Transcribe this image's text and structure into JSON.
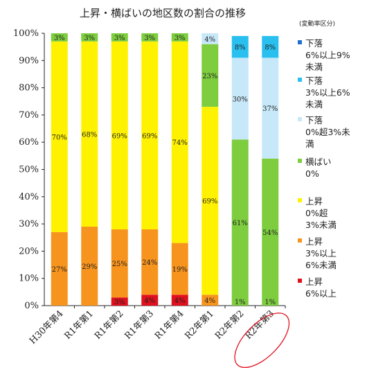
{
  "chart_data": {
    "type": "bar",
    "stacked": true,
    "title": "上昇・横ばいの地区数の割合の推移",
    "unit_note": "(変動率区分)",
    "categories": [
      "H30年第4",
      "R1年第1",
      "R1年第2",
      "R1年第3",
      "R1年第4",
      "R2年第1",
      "R2年第2",
      "R2年第3"
    ],
    "highlighted_category": "R2年第3",
    "ylim": [
      0,
      100
    ],
    "yticks": [
      "0%",
      "10%",
      "20%",
      "30%",
      "40%",
      "50%",
      "60%",
      "70%",
      "80%",
      "90%",
      "100%"
    ],
    "grid": false,
    "legend_position": "right",
    "series": [
      {
        "name": "上昇 6%以上",
        "legend_lines": [
          "上昇",
          "6%以上"
        ],
        "color": "#e0101e",
        "values": [
          0,
          0,
          3,
          4,
          4,
          0,
          0,
          0
        ],
        "labels": [
          "",
          "",
          "3%",
          "4%",
          "4%",
          "",
          "",
          ""
        ]
      },
      {
        "name": "上昇 3%以上 6%未満",
        "legend_lines": [
          "上昇",
          "3%以上",
          "6%未満"
        ],
        "color": "#f7941d",
        "values": [
          27,
          29,
          25,
          24,
          19,
          4,
          0,
          0
        ],
        "labels": [
          "27%",
          "29%",
          "25%",
          "24%",
          "19%",
          "4%",
          "",
          ""
        ]
      },
      {
        "name": "上昇 0%超 3%未満",
        "legend_lines": [
          "上昇",
          "0%超",
          "3%未満"
        ],
        "color": "#fff200",
        "values": [
          70,
          68,
          69,
          69,
          74,
          69,
          0,
          0
        ],
        "labels": [
          "70%",
          "68%",
          "69%",
          "69%",
          "74%",
          "69%",
          "",
          ""
        ]
      },
      {
        "name": "横ばい 0%",
        "legend_lines": [
          "横ばい",
          "0%"
        ],
        "color": "#7dcd3f",
        "values": [
          3,
          3,
          3,
          3,
          3,
          23,
          61,
          54
        ],
        "labels": [
          "3%",
          "3%",
          "3%",
          "3%",
          "3%",
          "23%",
          "61%",
          "54%"
        ]
      },
      {
        "name": "下落 0%超3%未満",
        "legend_lines": [
          "下落",
          "0%超3%未",
          "満"
        ],
        "color": "#c7e8f8",
        "values": [
          0,
          0,
          0,
          0,
          0,
          4,
          30,
          37
        ],
        "labels": [
          "",
          "",
          "",
          "",
          "",
          "4%",
          "30%",
          "37%"
        ]
      },
      {
        "name": "下落 3%以上6%未満",
        "legend_lines": [
          "下落",
          "3%以上6%",
          "未満"
        ],
        "color": "#29c0f0",
        "values": [
          0,
          0,
          0,
          0,
          0,
          0,
          8,
          8
        ],
        "labels": [
          "",
          "",
          "",
          "",
          "",
          "",
          "8%",
          "8%"
        ]
      },
      {
        "name": "下落 6%以上9%未満",
        "legend_lines": [
          "下落",
          "6%以上9%",
          "未満"
        ],
        "color": "#1f6fd1",
        "values": [
          0,
          0,
          0,
          0,
          0,
          0,
          0,
          0
        ],
        "labels": [
          "",
          "",
          "",
          "",
          "",
          "",
          "",
          ""
        ]
      }
    ],
    "extra_bottom_labels": [
      {
        "category": "R2年第2",
        "label": "1%"
      },
      {
        "category": "R2年第3",
        "label": "1%"
      }
    ]
  }
}
